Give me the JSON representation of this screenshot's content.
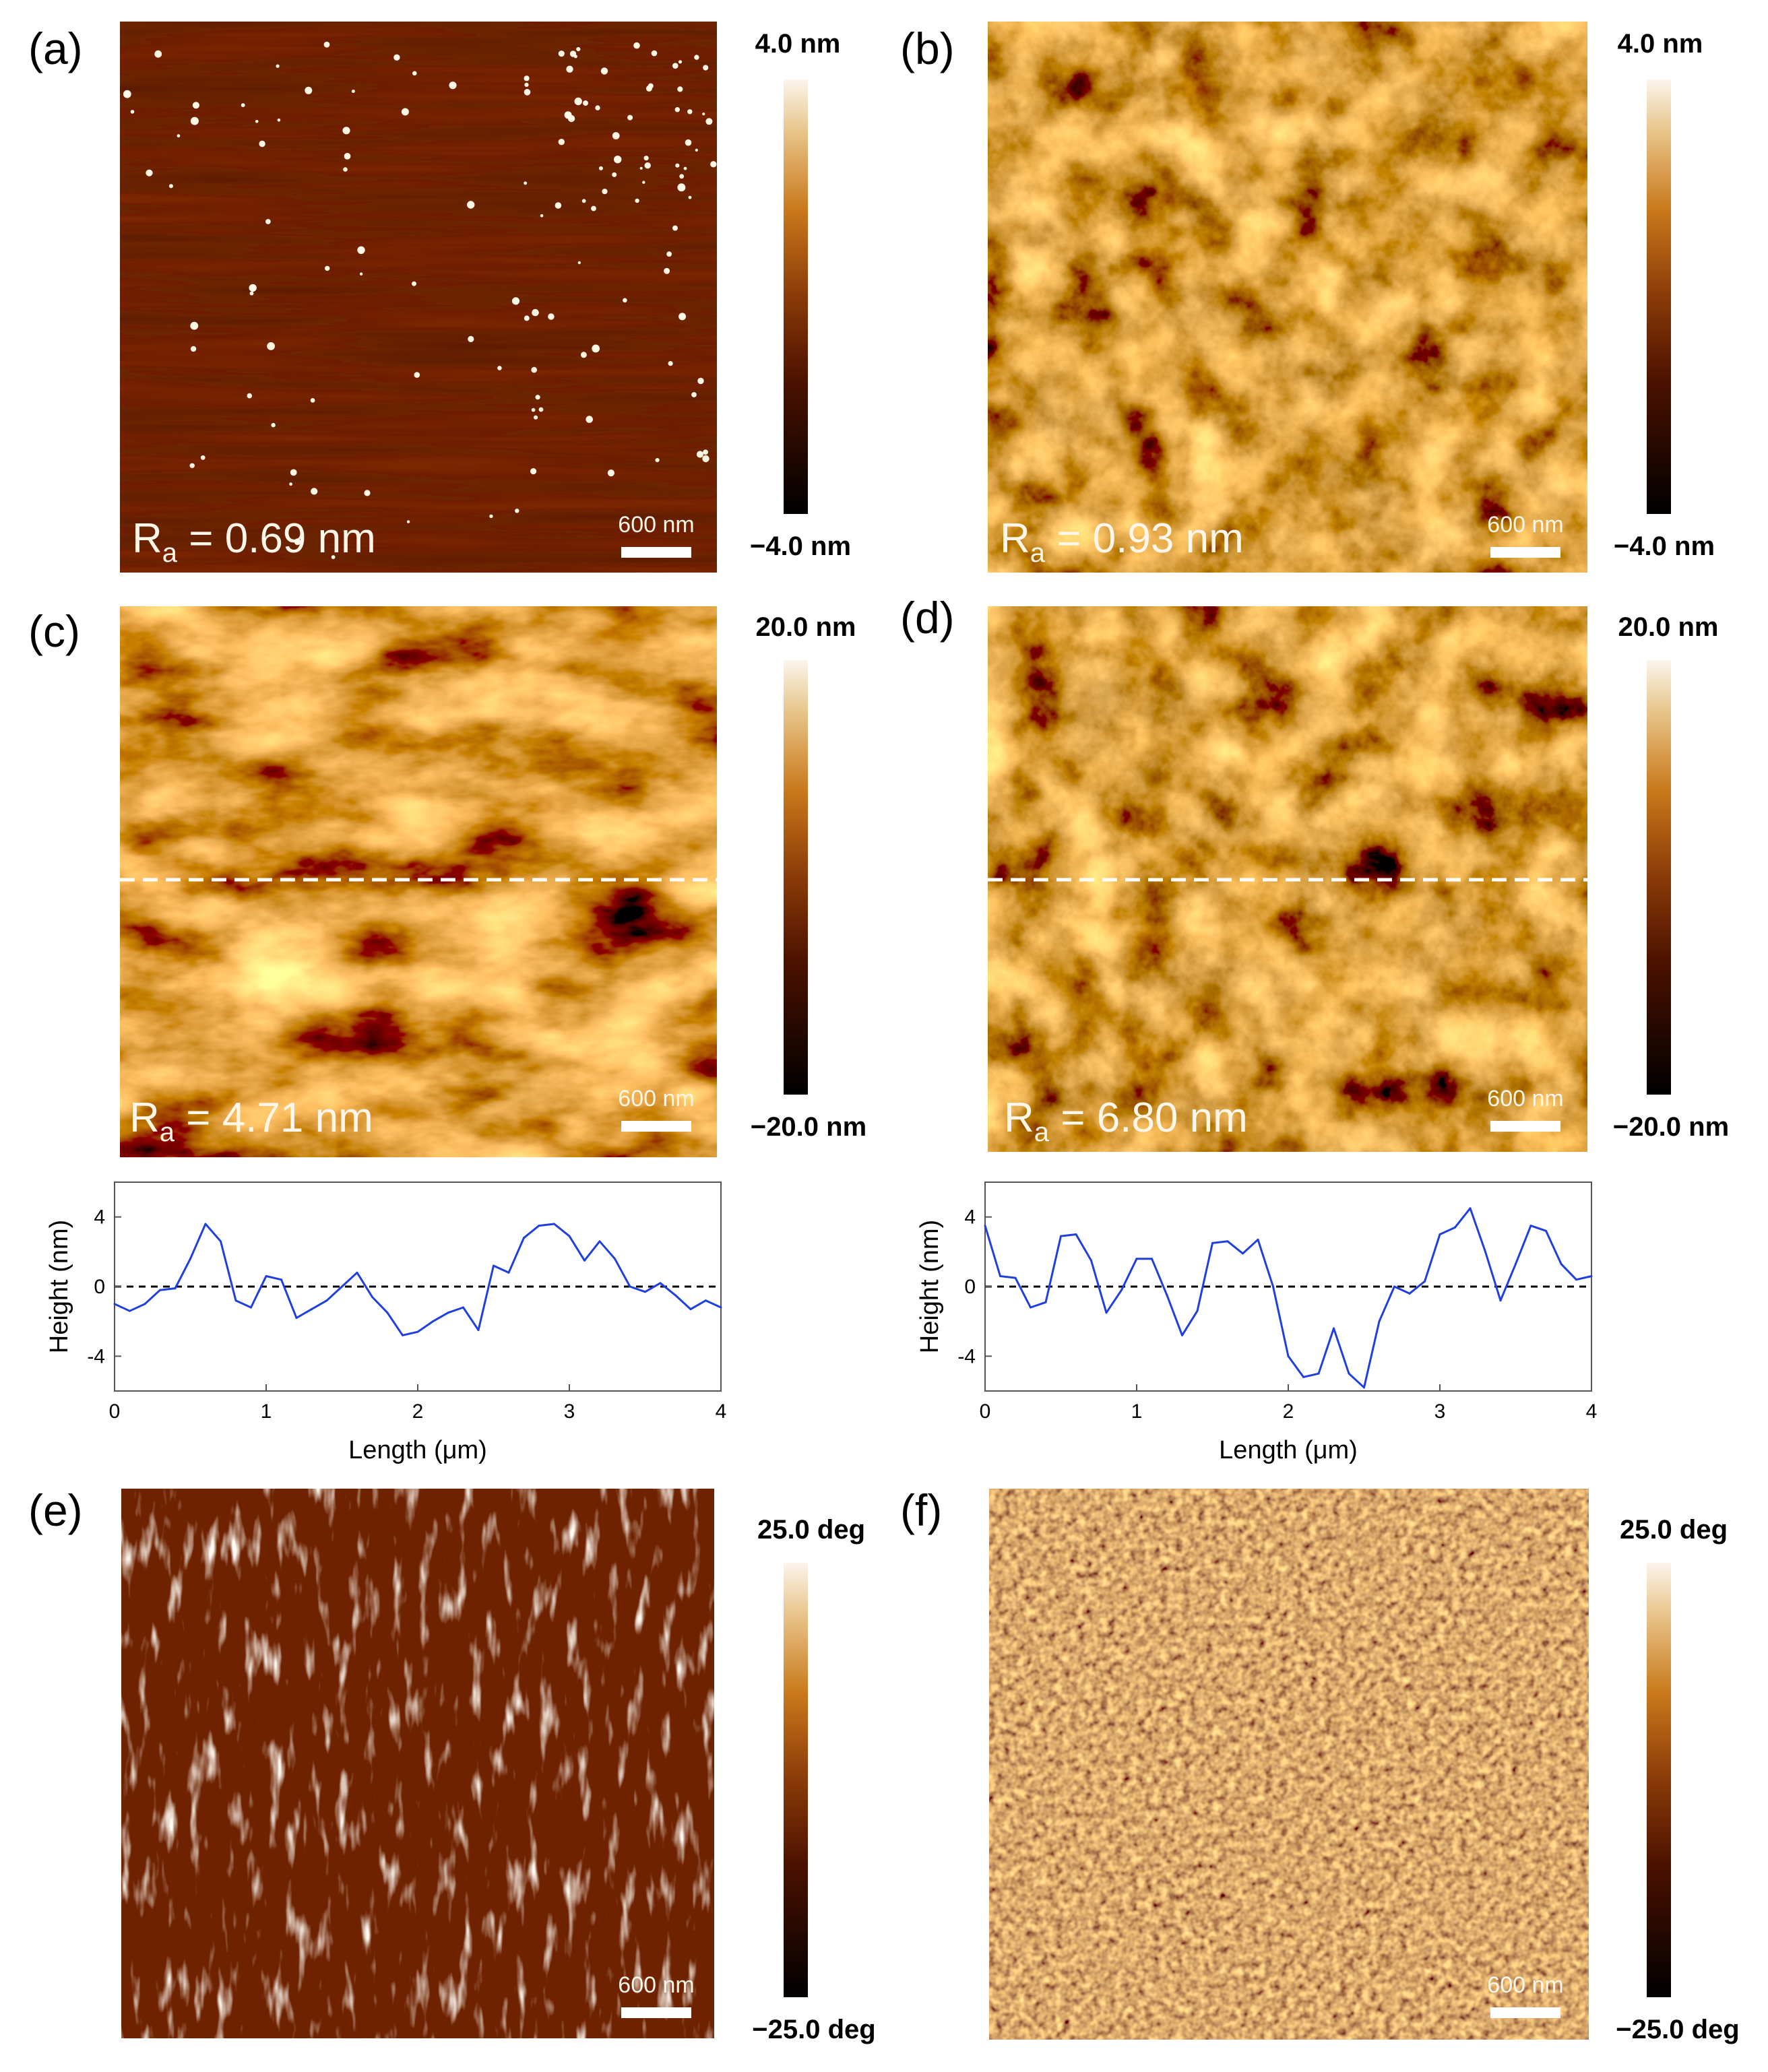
{
  "colors": {
    "afm_dark": "#000000",
    "afm_mid": "#6a1c00",
    "afm_orange": "#c9791a",
    "afm_light": "#fbf1e0",
    "profile_line": "#1f3fe0"
  },
  "panels": [
    {
      "id": "a",
      "label": "(a)",
      "ra_prefix": "R",
      "ra_sub": "a",
      "ra_value": " = 0.69 nm",
      "scale_label": "600 nm",
      "cb_top": "4.0 nm",
      "cb_bottom": "−4.0 nm",
      "texture": "dots"
    },
    {
      "id": "b",
      "label": "(b)",
      "ra_prefix": "R",
      "ra_sub": "a",
      "ra_value": " = 0.93 nm",
      "scale_label": "600 nm",
      "cb_top": "4.0 nm",
      "cb_bottom": "−4.0 nm",
      "texture": "grainy"
    },
    {
      "id": "c",
      "label": "(c)",
      "ra_prefix": "R",
      "ra_sub": "a",
      "ra_value": " = 4.71 nm",
      "scale_label": "600 nm",
      "cb_top": "20.0 nm",
      "cb_bottom": "−20.0 nm",
      "texture": "grainy-large"
    },
    {
      "id": "d",
      "label": "(d)",
      "ra_prefix": "R",
      "ra_sub": "a",
      "ra_value": " = 6.80 nm",
      "scale_label": "600 nm",
      "cb_top": "20.0 nm",
      "cb_bottom": "−20.0 nm",
      "texture": "grainy"
    },
    {
      "id": "e",
      "label": "(e)",
      "ra_prefix": "",
      "ra_sub": "",
      "ra_value": "",
      "scale_label": "600 nm",
      "cb_top": "25.0 deg",
      "cb_bottom": "−25.0 deg",
      "texture": "phase-streaks"
    },
    {
      "id": "f",
      "label": "(f)",
      "ra_prefix": "",
      "ra_sub": "",
      "ra_value": "",
      "scale_label": "600 nm",
      "cb_top": "25.0 deg",
      "cb_bottom": "−25.0 deg",
      "texture": "phase-fine"
    }
  ],
  "chart_data": [
    {
      "type": "line",
      "panel": "c",
      "xlabel": "Length (μm)",
      "ylabel": "Height (nm)",
      "xlim": [
        0,
        4
      ],
      "ylim": [
        -6,
        6
      ],
      "xticks": [
        0,
        1,
        2,
        3,
        4
      ],
      "yticks": [
        4,
        0,
        -4
      ],
      "reference_line_y": 0,
      "x": [
        0,
        0.1,
        0.2,
        0.3,
        0.4,
        0.5,
        0.6,
        0.7,
        0.8,
        0.9,
        1.0,
        1.1,
        1.2,
        1.3,
        1.4,
        1.5,
        1.6,
        1.7,
        1.8,
        1.9,
        2.0,
        2.1,
        2.2,
        2.3,
        2.4,
        2.5,
        2.6,
        2.7,
        2.8,
        2.9,
        3.0,
        3.1,
        3.2,
        3.3,
        3.4,
        3.5,
        3.6,
        3.7,
        3.8,
        3.9,
        4.0
      ],
      "y": [
        -1.0,
        -1.4,
        -1.0,
        -0.2,
        -0.1,
        1.6,
        3.6,
        2.6,
        -0.8,
        -1.2,
        0.6,
        0.4,
        -1.8,
        -1.3,
        -0.8,
        0.0,
        0.8,
        -0.6,
        -1.5,
        -2.8,
        -2.6,
        -2.0,
        -1.5,
        -1.2,
        -2.5,
        1.2,
        0.8,
        2.8,
        3.5,
        3.6,
        2.9,
        1.5,
        2.6,
        1.6,
        0.0,
        -0.3,
        0.2,
        -0.5,
        -1.3,
        -0.8,
        -1.2
      ]
    },
    {
      "type": "line",
      "panel": "d",
      "xlabel": "Length (μm)",
      "ylabel": "Height (nm)",
      "xlim": [
        0,
        4
      ],
      "ylim": [
        -6,
        6
      ],
      "xticks": [
        0,
        1,
        2,
        3,
        4
      ],
      "yticks": [
        4,
        0,
        -4
      ],
      "reference_line_y": 0,
      "x": [
        0,
        0.1,
        0.2,
        0.3,
        0.4,
        0.5,
        0.6,
        0.7,
        0.8,
        0.9,
        1.0,
        1.1,
        1.2,
        1.3,
        1.4,
        1.5,
        1.6,
        1.7,
        1.8,
        1.9,
        2.0,
        2.1,
        2.2,
        2.3,
        2.4,
        2.5,
        2.6,
        2.7,
        2.8,
        2.9,
        3.0,
        3.1,
        3.2,
        3.3,
        3.4,
        3.5,
        3.6,
        3.7,
        3.8,
        3.9,
        4.0
      ],
      "y": [
        3.5,
        0.6,
        0.5,
        -1.2,
        -0.9,
        2.9,
        3.0,
        1.5,
        -1.5,
        -0.2,
        1.6,
        1.6,
        -0.5,
        -2.8,
        -1.4,
        2.5,
        2.6,
        1.9,
        2.7,
        0.0,
        -4.0,
        -5.2,
        -5.0,
        -2.4,
        -5.0,
        -5.8,
        -2.0,
        0.0,
        -0.4,
        0.3,
        3.0,
        3.4,
        4.5,
        2.0,
        -0.8,
        1.3,
        3.5,
        3.2,
        1.3,
        0.4,
        0.6
      ]
    }
  ]
}
